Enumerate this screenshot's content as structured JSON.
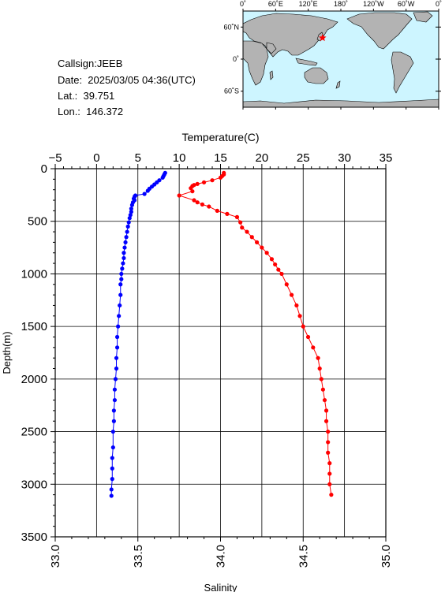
{
  "info": {
    "callsign": "Callsign:JEEB",
    "date": "Date:  2025/03/05 04:36(UTC)",
    "lat": "Lat.:  39.751",
    "lon": "Lon.:  146.372"
  },
  "map": {
    "top_ticks": [
      "0˚",
      "60˚E",
      "120˚E",
      "180˚",
      "120˚W",
      "60˚W",
      "0˚"
    ],
    "right_ticks": [
      "60˚N",
      "0˚",
      "60˚S"
    ],
    "ocean_color": "#cdf5ff",
    "land_color": "#b3b3b3",
    "marker_icon": "star-icon",
    "marker_color": "#ff0000",
    "station": {
      "lat": 39.751,
      "lon": 146.372
    }
  },
  "chart_data": {
    "type": "scatter",
    "top_axis_label": "Temperature(C)",
    "bottom_axis_label": "Salinity",
    "ylabel": "Depth(m)",
    "temperature_range": [
      -5,
      35
    ],
    "salinity_range": [
      33.0,
      35.0
    ],
    "depth_range": [
      0,
      3500
    ],
    "temperature_ticks": [
      "−5",
      "0",
      "5",
      "10",
      "15",
      "20",
      "25",
      "30",
      "35"
    ],
    "salinity_ticks": [
      "33.0",
      "33.5",
      "34.0",
      "34.5",
      "35.0"
    ],
    "depth_ticks": [
      "0",
      "500",
      "1000",
      "1500",
      "2000",
      "2500",
      "3000",
      "3500"
    ],
    "grid": true,
    "series": [
      {
        "color": "#0000ff",
        "variable": "temperature",
        "points": [
          [
            8.3,
            40
          ],
          [
            8.2,
            55
          ],
          [
            8.1,
            70
          ],
          [
            8.0,
            85
          ],
          [
            7.6,
            110
          ],
          [
            7.3,
            130
          ],
          [
            7.0,
            150
          ],
          [
            6.7,
            170
          ],
          [
            6.4,
            190
          ],
          [
            6.2,
            210
          ],
          [
            5.8,
            240
          ],
          [
            4.7,
            255
          ],
          [
            4.6,
            265
          ],
          [
            4.5,
            285
          ],
          [
            4.6,
            300
          ],
          [
            4.4,
            320
          ],
          [
            4.3,
            345
          ],
          [
            4.2,
            380
          ],
          [
            4.2,
            410
          ],
          [
            4.1,
            440
          ],
          [
            4.0,
            470
          ],
          [
            3.9,
            510
          ],
          [
            3.8,
            550
          ],
          [
            3.7,
            600
          ],
          [
            3.6,
            650
          ],
          [
            3.5,
            700
          ],
          [
            3.4,
            750
          ],
          [
            3.3,
            800
          ],
          [
            3.3,
            850
          ],
          [
            3.2,
            900
          ],
          [
            3.1,
            950
          ],
          [
            3.0,
            1000
          ],
          [
            3.0,
            1050
          ],
          [
            2.9,
            1100
          ],
          [
            2.9,
            1200
          ],
          [
            2.8,
            1300
          ],
          [
            2.7,
            1400
          ],
          [
            2.6,
            1500
          ],
          [
            2.5,
            1600
          ],
          [
            2.5,
            1700
          ],
          [
            2.4,
            1800
          ],
          [
            2.4,
            1900
          ],
          [
            2.3,
            2000
          ],
          [
            2.2,
            2100
          ],
          [
            2.2,
            2200
          ],
          [
            2.1,
            2300
          ],
          [
            2.1,
            2400
          ],
          [
            2.0,
            2500
          ],
          [
            2.0,
            2650
          ],
          [
            1.9,
            2750
          ],
          [
            1.9,
            2850
          ],
          [
            1.9,
            2950
          ],
          [
            1.8,
            3050
          ],
          [
            1.8,
            3110
          ]
        ]
      },
      {
        "color": "#ff0000",
        "variable": "salinity",
        "points": [
          [
            34.02,
            40
          ],
          [
            34.02,
            55
          ],
          [
            34.01,
            70
          ],
          [
            34.0,
            85
          ],
          [
            33.95,
            110
          ],
          [
            33.9,
            130
          ],
          [
            33.86,
            145
          ],
          [
            33.84,
            155
          ],
          [
            33.83,
            165
          ],
          [
            33.82,
            185
          ],
          [
            33.83,
            215
          ],
          [
            33.75,
            255
          ],
          [
            33.84,
            300
          ],
          [
            33.86,
            320
          ],
          [
            33.89,
            340
          ],
          [
            33.93,
            360
          ],
          [
            33.98,
            400
          ],
          [
            34.04,
            430
          ],
          [
            34.1,
            460
          ],
          [
            34.12,
            510
          ],
          [
            34.13,
            560
          ],
          [
            34.16,
            600
          ],
          [
            34.19,
            650
          ],
          [
            34.22,
            700
          ],
          [
            34.25,
            750
          ],
          [
            34.28,
            800
          ],
          [
            34.31,
            860
          ],
          [
            34.33,
            910
          ],
          [
            34.35,
            960
          ],
          [
            34.37,
            1000
          ],
          [
            34.4,
            1100
          ],
          [
            34.43,
            1200
          ],
          [
            34.46,
            1300
          ],
          [
            34.48,
            1400
          ],
          [
            34.5,
            1500
          ],
          [
            34.53,
            1600
          ],
          [
            34.56,
            1700
          ],
          [
            34.59,
            1800
          ],
          [
            34.6,
            1900
          ],
          [
            34.61,
            2000
          ],
          [
            34.62,
            2100
          ],
          [
            34.63,
            2200
          ],
          [
            34.64,
            2300
          ],
          [
            34.64,
            2400
          ],
          [
            34.65,
            2500
          ],
          [
            34.65,
            2600
          ],
          [
            34.65,
            2700
          ],
          [
            34.66,
            2800
          ],
          [
            34.66,
            2900
          ],
          [
            34.66,
            3000
          ],
          [
            34.67,
            3100
          ]
        ]
      }
    ]
  }
}
